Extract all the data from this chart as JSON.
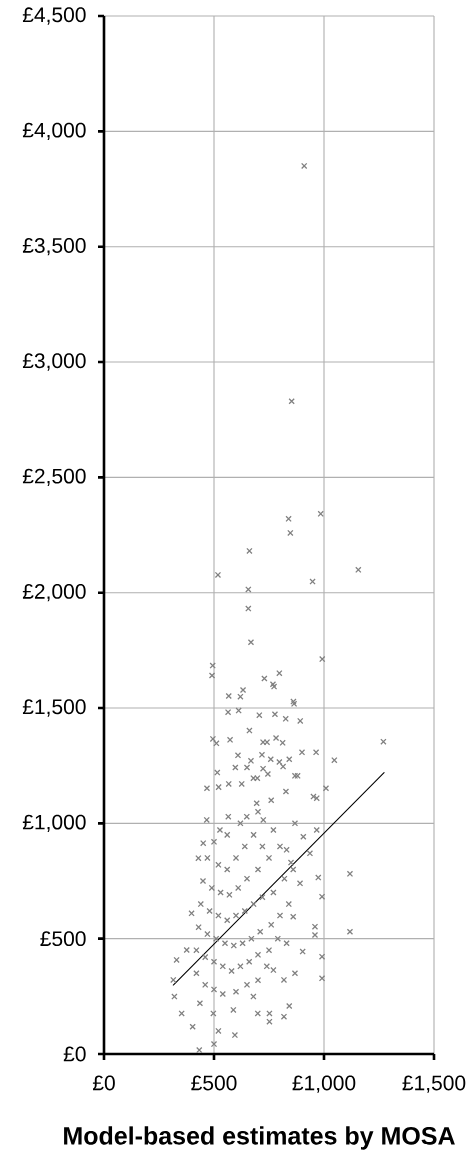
{
  "chart_data": {
    "type": "scatter",
    "xlabel": "Model-based estimates by MOSA",
    "xlim": [
      0,
      1500
    ],
    "ylim": [
      0,
      4500
    ],
    "xticks": [
      {
        "value": 0,
        "label": "£0"
      },
      {
        "value": 500,
        "label": "£500"
      },
      {
        "value": 1000,
        "label": "£1,000"
      },
      {
        "value": 1500,
        "label": "£1,500"
      }
    ],
    "yticks": [
      {
        "value": 0,
        "label": "£0"
      },
      {
        "value": 500,
        "label": "£500"
      },
      {
        "value": 1000,
        "label": "£1,000"
      },
      {
        "value": 1500,
        "label": "£1,500"
      },
      {
        "value": 2000,
        "label": "£2,000"
      },
      {
        "value": 2500,
        "label": "£2,500"
      },
      {
        "value": 3000,
        "label": "£3,000"
      },
      {
        "value": 3500,
        "label": "£3,500"
      },
      {
        "value": 4000,
        "label": "£4,000"
      },
      {
        "value": 4500,
        "label": "£4,500"
      }
    ],
    "grid": true,
    "marker": "cross",
    "series": [
      {
        "color": "#808080",
        "x": [
          910,
          853,
          839,
          847,
          985,
          661,
          518,
          656,
          656,
          668,
          1156,
          948,
          992,
          494,
          491,
          797,
          729,
          768,
          773,
          632,
          567,
          620,
          861,
          864,
          564,
          612,
          706,
          777,
          826,
          892,
          661,
          495,
          511,
          573,
          723,
          741,
          782,
          812,
          1270,
          900,
          964,
          1047,
          609,
          718,
          758,
          842,
          797,
          597,
          650,
          668,
          723,
          814,
          515,
          868,
          880,
          679,
          697,
          745,
          468,
          521,
          567,
          626,
          1009,
          827,
          1118,
          1118,
          991,
          991,
          991,
          974,
          959,
          959,
          903,
          967,
          952,
          868,
          818,
          842,
          818,
          752,
          752,
          699,
          595,
          520,
          500,
          433,
          403,
          353,
          320,
          315,
          330,
          376,
          398,
          429,
          451,
          467,
          527,
          565,
          649,
          694,
          724,
          770,
          830,
          868,
          906,
          936,
          967,
          891,
          860,
          830,
          770,
          679,
          588,
          497,
          436,
          420,
          460,
          500,
          540,
          600,
          650,
          700,
          740,
          420,
          460,
          500,
          540,
          580,
          620,
          660,
          700,
          750,
          790,
          430,
          470,
          510,
          550,
          590,
          630,
          670,
          710,
          760,
          800,
          840,
          440,
          480,
          520,
          560,
          600,
          640,
          680,
          720,
          770,
          820,
          860,
          450,
          490,
          530,
          570,
          610,
          650,
          700,
          750,
          800,
          850,
          470,
          520,
          560,
          600,
          640,
          680,
          720,
          500,
          560,
          620,
          700,
          760
        ],
        "values": [
          3850,
          2830,
          2320,
          2259,
          2342,
          2181,
          2077,
          2014,
          1931,
          1785,
          2099,
          2048,
          1712,
          1684,
          1641,
          1651,
          1628,
          1603,
          1593,
          1578,
          1552,
          1549,
          1528,
          1518,
          1482,
          1489,
          1469,
          1473,
          1453,
          1444,
          1402,
          1366,
          1347,
          1362,
          1352,
          1352,
          1370,
          1349,
          1354,
          1308,
          1308,
          1274,
          1295,
          1297,
          1278,
          1278,
          1266,
          1242,
          1242,
          1271,
          1237,
          1246,
          1220,
          1206,
          1206,
          1196,
          1196,
          1214,
          1152,
          1157,
          1171,
          1171,
          1152,
          1138,
          781,
          530,
          422,
          328,
          682,
          765,
          552,
          516,
          444,
          1109,
          1116,
          350,
          321,
          208,
          162,
          140,
          176,
          176,
          82,
          100,
          43,
          17,
          118,
          176,
          249,
          321,
          408,
          451,
          610,
          849,
          914,
          1015,
          971,
          1029,
          1029,
          1087,
          1015,
          971,
          885,
          1000,
          942,
          870,
          971,
          740,
          595,
          480,
          364,
          249,
          191,
          176,
          220,
          350,
          300,
          280,
          260,
          270,
          300,
          320,
          380,
          450,
          420,
          400,
          380,
          360,
          380,
          400,
          430,
          450,
          500,
          550,
          520,
          500,
          480,
          470,
          480,
          500,
          530,
          560,
          600,
          650,
          650,
          620,
          600,
          580,
          600,
          620,
          650,
          680,
          700,
          760,
          800,
          750,
          720,
          700,
          690,
          720,
          760,
          800,
          850,
          900,
          830,
          850,
          820,
          800,
          850,
          900,
          950,
          900,
          920,
          950,
          1000,
          1050,
          1100
        ]
      },
      {
        "type": "line",
        "color": "#000000",
        "marker": "none",
        "line_style": "solid",
        "x": [
          315,
          1273
        ],
        "values": [
          299,
          1220
        ]
      }
    ]
  }
}
